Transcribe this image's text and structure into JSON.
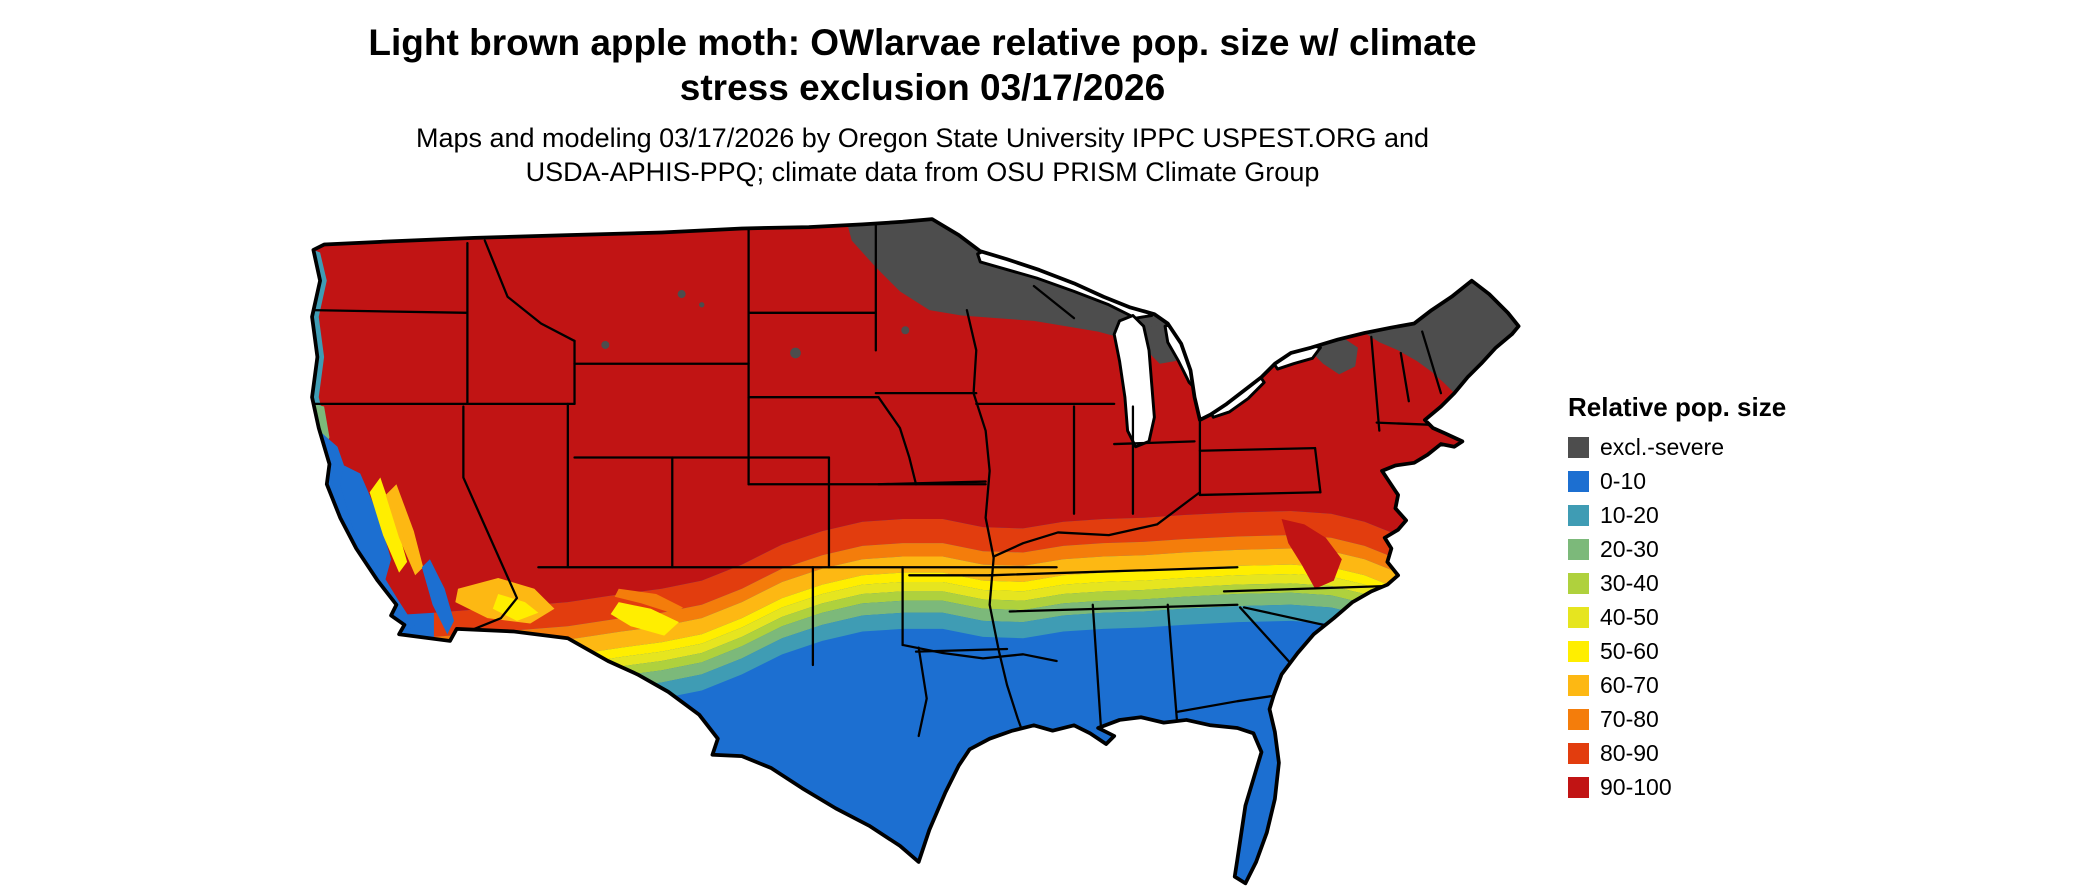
{
  "title": {
    "line1": "Light brown apple moth: OWlarvae relative pop. size w/ climate",
    "line2": "stress exclusion 03/17/2026"
  },
  "subtitle": {
    "line1": "Maps and modeling 03/17/2026 by Oregon State University IPPC USPEST.ORG and",
    "line2": "USDA-APHIS-PPQ; climate data from OSU PRISM Climate Group"
  },
  "legend": {
    "title": "Relative pop. size",
    "items": [
      {
        "label": "excl.-severe",
        "color": "#4d4d4d"
      },
      {
        "label": "0-10",
        "color": "#1c6fd1"
      },
      {
        "label": "10-20",
        "color": "#3f9cb4"
      },
      {
        "label": "20-30",
        "color": "#7cb97a"
      },
      {
        "label": "30-40",
        "color": "#afd13d"
      },
      {
        "label": "40-50",
        "color": "#e6e51f"
      },
      {
        "label": "50-60",
        "color": "#ffee00"
      },
      {
        "label": "60-70",
        "color": "#fdb813"
      },
      {
        "label": "70-80",
        "color": "#f47d0b"
      },
      {
        "label": "80-90",
        "color": "#e23d0e"
      },
      {
        "label": "90-100",
        "color": "#c11414"
      }
    ]
  },
  "map": {
    "region": "Contiguous United States",
    "border_color": "#000000",
    "water_color": "#ffffff",
    "pattern": [
      {
        "category": "excl.-severe",
        "areas": "northern Minnesota, northern Wisconsin, Michigan Upper Peninsula and northern Lower Michigan, Adirondacks, northern New England (most of Maine, northern NH and VT)"
      },
      {
        "category": "90-100",
        "areas": "most of the northern and central U.S.: Pacific Northwest interior, Rockies, Great Basin, Plains, Midwest, Northeast, Appalachians"
      },
      {
        "category": "60-70 to 80-90",
        "areas": "transition band through central Plains, Ozarks, Tennessee Valley and mid-Atlantic interior; patches in Arizona and New Mexico"
      },
      {
        "category": "10-20 to 50-60",
        "areas": "narrow east-west bands across northern Texas, Arkansas, Tennessee and the Carolinas; fringes of the California Central Valley and Pacific coast"
      },
      {
        "category": "0-10",
        "areas": "southern tier: coastal and valley California, lower Colorado River, southern New Mexico, most of Texas, Gulf Coast states, Florida, southern Atlantic coastal plain"
      }
    ]
  }
}
